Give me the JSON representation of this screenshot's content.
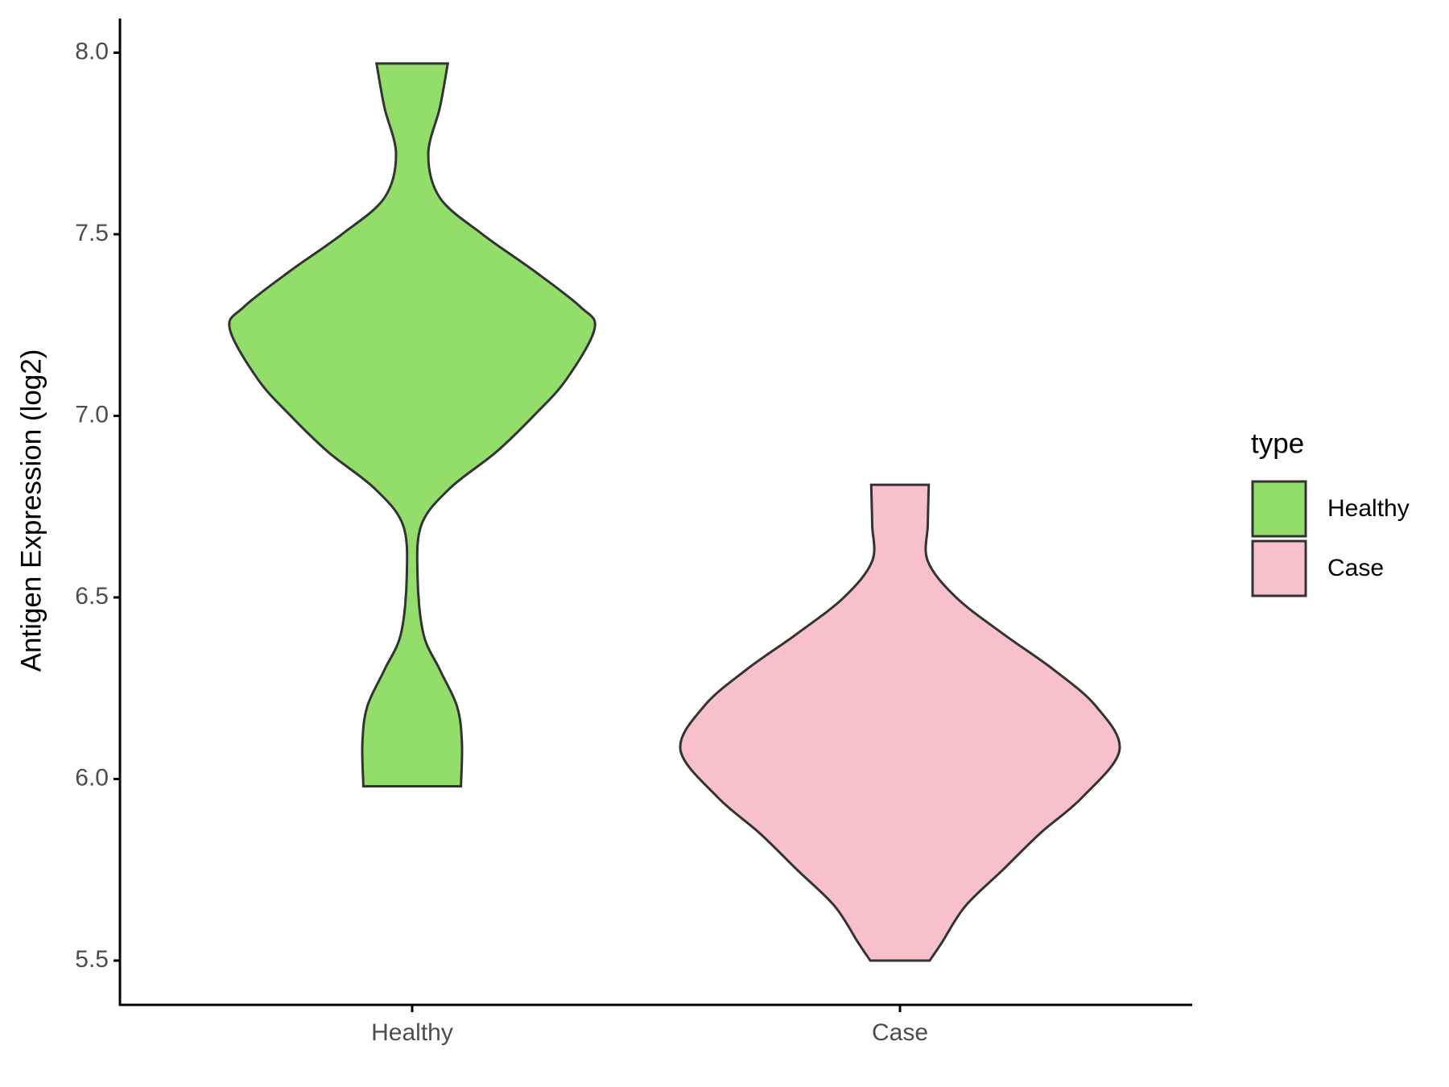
{
  "chart_data": {
    "type": "violin",
    "y_label": "Antigen Expression (log2)",
    "categories": [
      "Healthy",
      "Case"
    ],
    "legend_title": "type",
    "legend_position": "right",
    "ylim": [
      5.378,
      8.094
    ],
    "yticks": [
      {
        "value": 5.5,
        "label": "5.5"
      },
      {
        "value": 6,
        "label": "6.0"
      },
      {
        "value": 6.5,
        "label": "6.5"
      },
      {
        "value": 7,
        "label": "7.0"
      },
      {
        "value": 7.5,
        "label": "7.5"
      },
      {
        "value": 8,
        "label": "8.0"
      }
    ],
    "series": [
      {
        "name": "Healthy",
        "color": "#93dd6a",
        "y": [
          5.98,
          6.1,
          6.2,
          6.3,
          6.4,
          6.56,
          6.7,
          6.8,
          6.9,
          7.0,
          7.1,
          7.24,
          7.3,
          7.4,
          7.5,
          7.6,
          7.72,
          7.85,
          7.97
        ],
        "half_widths": [
          0.1,
          0.102,
          0.092,
          0.057,
          0.023,
          0.011,
          0.019,
          0.077,
          0.172,
          0.249,
          0.316,
          0.374,
          0.345,
          0.249,
          0.144,
          0.057,
          0.033,
          0.057,
          0.073
        ]
      },
      {
        "name": "Case",
        "color": "#f7c0cb",
        "y": [
          5.5,
          5.55,
          5.65,
          5.75,
          5.85,
          5.95,
          6.08,
          6.2,
          6.3,
          6.4,
          6.5,
          6.6,
          6.7,
          6.81
        ],
        "half_widths": [
          0.061,
          0.086,
          0.134,
          0.211,
          0.287,
          0.374,
          0.45,
          0.402,
          0.316,
          0.211,
          0.115,
          0.057,
          0.057,
          0.059
        ]
      }
    ]
  }
}
